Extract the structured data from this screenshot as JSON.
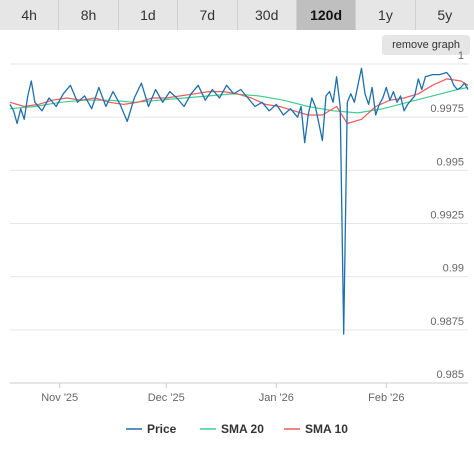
{
  "tabs": [
    {
      "label": "4h",
      "active": false
    },
    {
      "label": "8h",
      "active": false
    },
    {
      "label": "1d",
      "active": false
    },
    {
      "label": "7d",
      "active": false
    },
    {
      "label": "30d",
      "active": false
    },
    {
      "label": "120d",
      "active": true
    },
    {
      "label": "1y",
      "active": false
    },
    {
      "label": "5y",
      "active": false
    }
  ],
  "remove_button_label": "remove graph",
  "colors": {
    "price": "#1f6fad",
    "sma20": "#3ecf8e",
    "sma10": "#f05a5a",
    "grid": "#e6e6e6",
    "axis": "#cccccc"
  },
  "chart_data": {
    "type": "line",
    "title": "",
    "xlabel": "",
    "ylabel": "",
    "ylim": [
      0.985,
      1.0
    ],
    "xlim": [
      "2025-10-18",
      "2026-02-24"
    ],
    "y_ticks": [
      {
        "value": 0.985,
        "label": "0.985"
      },
      {
        "value": 0.9875,
        "label": "0.9875"
      },
      {
        "value": 0.99,
        "label": "0.99"
      },
      {
        "value": 0.9925,
        "label": "0.9925"
      },
      {
        "value": 0.995,
        "label": "0.995"
      },
      {
        "value": 0.9975,
        "label": "0.9975"
      },
      {
        "value": 1.0,
        "label": "1"
      }
    ],
    "x_ticks": [
      {
        "date": "2025-11-01",
        "label": "Nov '25"
      },
      {
        "date": "2025-12-01",
        "label": "Dec '25"
      },
      {
        "date": "2026-01-01",
        "label": "Jan '26"
      },
      {
        "date": "2026-02-01",
        "label": "Feb '26"
      }
    ],
    "grid": true,
    "legend_position": "bottom",
    "series": [
      {
        "name": "Price",
        "color_key": "price",
        "points": [
          [
            "2025-10-18",
            0.9981
          ],
          [
            "2025-10-19",
            0.9978
          ],
          [
            "2025-10-20",
            0.9972
          ],
          [
            "2025-10-21",
            0.9979
          ],
          [
            "2025-10-22",
            0.9974
          ],
          [
            "2025-10-23",
            0.9985
          ],
          [
            "2025-10-24",
            0.9992
          ],
          [
            "2025-10-25",
            0.9982
          ],
          [
            "2025-10-27",
            0.9978
          ],
          [
            "2025-10-29",
            0.9984
          ],
          [
            "2025-10-31",
            0.998
          ],
          [
            "2025-11-02",
            0.9986
          ],
          [
            "2025-11-04",
            0.999
          ],
          [
            "2025-11-06",
            0.9982
          ],
          [
            "2025-11-08",
            0.9985
          ],
          [
            "2025-11-10",
            0.9979
          ],
          [
            "2025-11-12",
            0.9989
          ],
          [
            "2025-11-14",
            0.998
          ],
          [
            "2025-11-16",
            0.9987
          ],
          [
            "2025-11-18",
            0.9981
          ],
          [
            "2025-11-20",
            0.9973
          ],
          [
            "2025-11-22",
            0.9984
          ],
          [
            "2025-11-24",
            0.9991
          ],
          [
            "2025-11-26",
            0.998
          ],
          [
            "2025-11-28",
            0.9988
          ],
          [
            "2025-11-30",
            0.9982
          ],
          [
            "2025-12-02",
            0.9987
          ],
          [
            "2025-12-04",
            0.9984
          ],
          [
            "2025-12-06",
            0.998
          ],
          [
            "2025-12-08",
            0.9986
          ],
          [
            "2025-12-10",
            0.999
          ],
          [
            "2025-12-12",
            0.9983
          ],
          [
            "2025-12-14",
            0.9988
          ],
          [
            "2025-12-16",
            0.9984
          ],
          [
            "2025-12-18",
            0.999
          ],
          [
            "2025-12-20",
            0.9986
          ],
          [
            "2025-12-22",
            0.9988
          ],
          [
            "2025-12-24",
            0.9984
          ],
          [
            "2025-12-26",
            0.998
          ],
          [
            "2025-12-28",
            0.9982
          ],
          [
            "2025-12-30",
            0.9978
          ],
          [
            "2026-01-01",
            0.9981
          ],
          [
            "2026-01-03",
            0.9976
          ],
          [
            "2026-01-05",
            0.9979
          ],
          [
            "2026-01-07",
            0.9975
          ],
          [
            "2026-01-08",
            0.998
          ],
          [
            "2026-01-09",
            0.9963
          ],
          [
            "2026-01-10",
            0.9976
          ],
          [
            "2026-01-11",
            0.9984
          ],
          [
            "2026-01-12",
            0.998
          ],
          [
            "2026-01-13",
            0.9972
          ],
          [
            "2026-01-14",
            0.9964
          ],
          [
            "2026-01-15",
            0.9985
          ],
          [
            "2026-01-16",
            0.9987
          ],
          [
            "2026-01-17",
            0.9982
          ],
          [
            "2026-01-18",
            0.9994
          ],
          [
            "2026-01-19",
            0.998
          ],
          [
            "2026-01-20",
            0.9873
          ],
          [
            "2026-01-21",
            0.9982
          ],
          [
            "2026-01-22",
            0.9986
          ],
          [
            "2026-01-23",
            0.9982
          ],
          [
            "2026-01-24",
            0.999
          ],
          [
            "2026-01-25",
            0.9998
          ],
          [
            "2026-01-26",
            0.9986
          ],
          [
            "2026-01-27",
            0.9981
          ],
          [
            "2026-01-28",
            0.9989
          ],
          [
            "2026-01-29",
            0.9976
          ],
          [
            "2026-01-30",
            0.9981
          ],
          [
            "2026-01-31",
            0.9984
          ],
          [
            "2026-02-01",
            0.9989
          ],
          [
            "2026-02-02",
            0.9983
          ],
          [
            "2026-02-03",
            0.9987
          ],
          [
            "2026-02-04",
            0.9982
          ],
          [
            "2026-02-05",
            0.9985
          ],
          [
            "2026-02-06",
            0.9978
          ],
          [
            "2026-02-07",
            0.9981
          ],
          [
            "2026-02-09",
            0.9985
          ],
          [
            "2026-02-10",
            0.9993
          ],
          [
            "2026-02-11",
            0.9988
          ],
          [
            "2026-02-12",
            0.9994
          ],
          [
            "2026-02-14",
            0.9995
          ],
          [
            "2026-02-16",
            0.9995
          ],
          [
            "2026-02-18",
            0.9996
          ],
          [
            "2026-02-19",
            0.9994
          ],
          [
            "2026-02-20",
            0.999
          ],
          [
            "2026-02-21",
            0.9988
          ],
          [
            "2026-02-22",
            0.9989
          ],
          [
            "2026-02-23",
            0.9991
          ],
          [
            "2026-02-24",
            0.9988
          ]
        ]
      },
      {
        "name": "SMA 20",
        "color_key": "sma20",
        "points": [
          [
            "2025-10-18",
            0.9979
          ],
          [
            "2025-10-25",
            0.998
          ],
          [
            "2025-11-01",
            0.9982
          ],
          [
            "2025-11-08",
            0.9983
          ],
          [
            "2025-11-15",
            0.9983
          ],
          [
            "2025-11-22",
            0.9982
          ],
          [
            "2025-11-29",
            0.9983
          ],
          [
            "2025-12-06",
            0.9984
          ],
          [
            "2025-12-13",
            0.9985
          ],
          [
            "2025-12-20",
            0.9986
          ],
          [
            "2025-12-27",
            0.9985
          ],
          [
            "2026-01-03",
            0.9983
          ],
          [
            "2026-01-10",
            0.998
          ],
          [
            "2026-01-17",
            0.9978
          ],
          [
            "2026-01-24",
            0.9977
          ],
          [
            "2026-01-31",
            0.9979
          ],
          [
            "2026-02-07",
            0.9982
          ],
          [
            "2026-02-14",
            0.9985
          ],
          [
            "2026-02-21",
            0.9988
          ],
          [
            "2026-02-24",
            0.9989
          ]
        ]
      },
      {
        "name": "SMA 10",
        "color_key": "sma10",
        "points": [
          [
            "2025-10-18",
            0.9982
          ],
          [
            "2025-10-22",
            0.998
          ],
          [
            "2025-10-26",
            0.9981
          ],
          [
            "2025-10-30",
            0.9983
          ],
          [
            "2025-11-03",
            0.9984
          ],
          [
            "2025-11-07",
            0.9983
          ],
          [
            "2025-11-11",
            0.9984
          ],
          [
            "2025-11-15",
            0.9982
          ],
          [
            "2025-11-19",
            0.9981
          ],
          [
            "2025-11-23",
            0.9982
          ],
          [
            "2025-11-27",
            0.9984
          ],
          [
            "2025-12-01",
            0.9984
          ],
          [
            "2025-12-05",
            0.9985
          ],
          [
            "2025-12-09",
            0.9986
          ],
          [
            "2025-12-13",
            0.9987
          ],
          [
            "2025-12-17",
            0.9987
          ],
          [
            "2025-12-21",
            0.9986
          ],
          [
            "2025-12-25",
            0.9984
          ],
          [
            "2025-12-29",
            0.9981
          ],
          [
            "2026-01-02",
            0.998
          ],
          [
            "2026-01-06",
            0.9978
          ],
          [
            "2026-01-10",
            0.9976
          ],
          [
            "2026-01-14",
            0.9976
          ],
          [
            "2026-01-18",
            0.998
          ],
          [
            "2026-01-21",
            0.9972
          ],
          [
            "2026-01-25",
            0.9974
          ],
          [
            "2026-01-29",
            0.998
          ],
          [
            "2026-02-02",
            0.9983
          ],
          [
            "2026-02-06",
            0.9984
          ],
          [
            "2026-02-10",
            0.9986
          ],
          [
            "2026-02-14",
            0.999
          ],
          [
            "2026-02-18",
            0.9993
          ],
          [
            "2026-02-22",
            0.9992
          ],
          [
            "2026-02-24",
            0.999
          ]
        ]
      }
    ]
  }
}
